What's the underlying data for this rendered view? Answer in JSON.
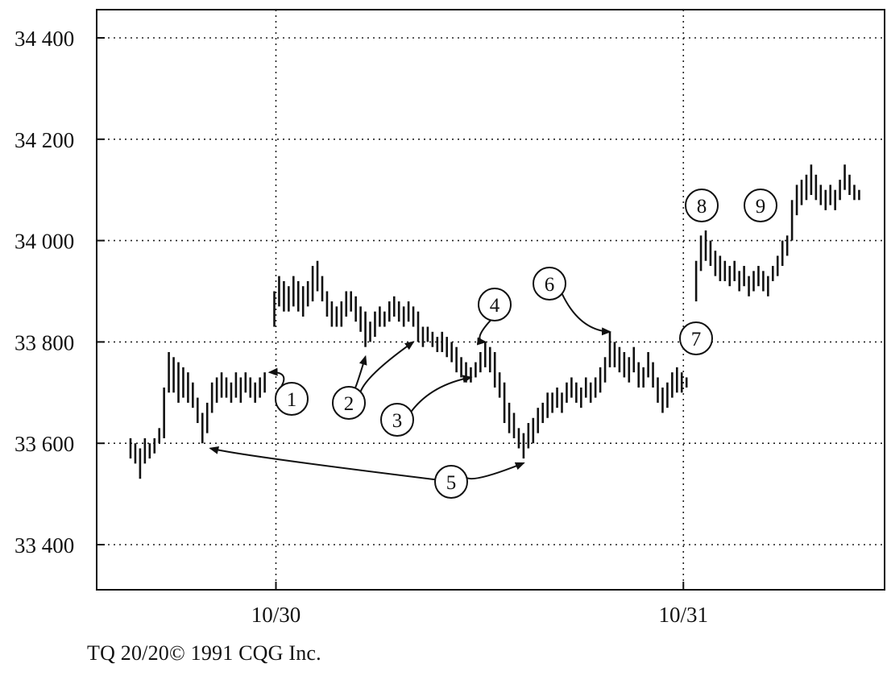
{
  "chart_data": {
    "type": "bar",
    "subtype": "ohlc-intraday-bars",
    "title": "",
    "xlabel": "",
    "ylabel": "",
    "ylim": [
      33300,
      34450
    ],
    "y_ticks": [
      {
        "value": 33400,
        "label": "33 400"
      },
      {
        "value": 33600,
        "label": "33 600"
      },
      {
        "value": 33800,
        "label": "33 800"
      },
      {
        "value": 34000,
        "label": "34 000"
      },
      {
        "value": 34200,
        "label": "34 200"
      },
      {
        "value": 34400,
        "label": "34 400"
      }
    ],
    "x_range": [
      0,
      153
    ],
    "x_ticks": [
      {
        "index": 30,
        "label": "10/30"
      },
      {
        "index": 115,
        "label": "10/31"
      }
    ],
    "grid": true,
    "bars": [
      {
        "i": 0,
        "high": 33610,
        "low": 33570
      },
      {
        "i": 1,
        "high": 33600,
        "low": 33560
      },
      {
        "i": 2,
        "high": 33590,
        "low": 33530
      },
      {
        "i": 3,
        "high": 33610,
        "low": 33560
      },
      {
        "i": 4,
        "high": 33600,
        "low": 33570
      },
      {
        "i": 5,
        "high": 33610,
        "low": 33580
      },
      {
        "i": 6,
        "high": 33630,
        "low": 33600
      },
      {
        "i": 7,
        "high": 33710,
        "low": 33610
      },
      {
        "i": 8,
        "high": 33780,
        "low": 33700
      },
      {
        "i": 9,
        "high": 33770,
        "low": 33700
      },
      {
        "i": 10,
        "high": 33760,
        "low": 33680
      },
      {
        "i": 11,
        "high": 33750,
        "low": 33690
      },
      {
        "i": 12,
        "high": 33740,
        "low": 33680
      },
      {
        "i": 13,
        "high": 33720,
        "low": 33670
      },
      {
        "i": 14,
        "high": 33690,
        "low": 33640
      },
      {
        "i": 15,
        "high": 33660,
        "low": 33600
      },
      {
        "i": 16,
        "high": 33680,
        "low": 33620
      },
      {
        "i": 17,
        "high": 33720,
        "low": 33660
      },
      {
        "i": 18,
        "high": 33730,
        "low": 33680
      },
      {
        "i": 19,
        "high": 33740,
        "low": 33690
      },
      {
        "i": 20,
        "high": 33730,
        "low": 33690
      },
      {
        "i": 21,
        "high": 33720,
        "low": 33680
      },
      {
        "i": 22,
        "high": 33740,
        "low": 33690
      },
      {
        "i": 23,
        "high": 33730,
        "low": 33680
      },
      {
        "i": 24,
        "high": 33740,
        "low": 33700
      },
      {
        "i": 25,
        "high": 33730,
        "low": 33690
      },
      {
        "i": 26,
        "high": 33720,
        "low": 33680
      },
      {
        "i": 27,
        "high": 33730,
        "low": 33690
      },
      {
        "i": 28,
        "high": 33740,
        "low": 33700
      },
      {
        "i": 30,
        "high": 33900,
        "low": 33830
      },
      {
        "i": 31,
        "high": 33930,
        "low": 33870
      },
      {
        "i": 32,
        "high": 33920,
        "low": 33860
      },
      {
        "i": 33,
        "high": 33910,
        "low": 33860
      },
      {
        "i": 34,
        "high": 33930,
        "low": 33870
      },
      {
        "i": 35,
        "high": 33920,
        "low": 33860
      },
      {
        "i": 36,
        "high": 33910,
        "low": 33850
      },
      {
        "i": 37,
        "high": 33920,
        "low": 33870
      },
      {
        "i": 38,
        "high": 33950,
        "low": 33880
      },
      {
        "i": 39,
        "high": 33960,
        "low": 33900
      },
      {
        "i": 40,
        "high": 33930,
        "low": 33880
      },
      {
        "i": 41,
        "high": 33900,
        "low": 33850
      },
      {
        "i": 42,
        "high": 33880,
        "low": 33830
      },
      {
        "i": 43,
        "high": 33870,
        "low": 33830
      },
      {
        "i": 44,
        "high": 33880,
        "low": 33830
      },
      {
        "i": 45,
        "high": 33900,
        "low": 33850
      },
      {
        "i": 46,
        "high": 33900,
        "low": 33860
      },
      {
        "i": 47,
        "high": 33890,
        "low": 33840
      },
      {
        "i": 48,
        "high": 33870,
        "low": 33820
      },
      {
        "i": 49,
        "high": 33860,
        "low": 33790
      },
      {
        "i": 50,
        "high": 33840,
        "low": 33800
      },
      {
        "i": 51,
        "high": 33860,
        "low": 33810
      },
      {
        "i": 52,
        "high": 33870,
        "low": 33830
      },
      {
        "i": 53,
        "high": 33860,
        "low": 33830
      },
      {
        "i": 54,
        "high": 33880,
        "low": 33840
      },
      {
        "i": 55,
        "high": 33890,
        "low": 33850
      },
      {
        "i": 56,
        "high": 33880,
        "low": 33840
      },
      {
        "i": 57,
        "high": 33870,
        "low": 33830
      },
      {
        "i": 58,
        "high": 33880,
        "low": 33840
      },
      {
        "i": 59,
        "high": 33870,
        "low": 33830
      },
      {
        "i": 60,
        "high": 33860,
        "low": 33800
      },
      {
        "i": 61,
        "high": 33830,
        "low": 33790
      },
      {
        "i": 62,
        "high": 33830,
        "low": 33800
      },
      {
        "i": 63,
        "high": 33820,
        "low": 33790
      },
      {
        "i": 64,
        "high": 33810,
        "low": 33780
      },
      {
        "i": 65,
        "high": 33820,
        "low": 33780
      },
      {
        "i": 66,
        "high": 33810,
        "low": 33770
      },
      {
        "i": 67,
        "high": 33800,
        "low": 33760
      },
      {
        "i": 68,
        "high": 33790,
        "low": 33740
      },
      {
        "i": 69,
        "high": 33770,
        "low": 33730
      },
      {
        "i": 70,
        "high": 33760,
        "low": 33720
      },
      {
        "i": 71,
        "high": 33750,
        "low": 33720
      },
      {
        "i": 72,
        "high": 33760,
        "low": 33730
      },
      {
        "i": 73,
        "high": 33780,
        "low": 33740
      },
      {
        "i": 74,
        "high": 33800,
        "low": 33750
      },
      {
        "i": 75,
        "high": 33790,
        "low": 33740
      },
      {
        "i": 76,
        "high": 33780,
        "low": 33710
      },
      {
        "i": 77,
        "high": 33740,
        "low": 33690
      },
      {
        "i": 78,
        "high": 33720,
        "low": 33640
      },
      {
        "i": 79,
        "high": 33680,
        "low": 33620
      },
      {
        "i": 80,
        "high": 33660,
        "low": 33610
      },
      {
        "i": 81,
        "high": 33630,
        "low": 33590
      },
      {
        "i": 82,
        "high": 33620,
        "low": 33570
      },
      {
        "i": 83,
        "high": 33640,
        "low": 33590
      },
      {
        "i": 84,
        "high": 33650,
        "low": 33600
      },
      {
        "i": 85,
        "high": 33670,
        "low": 33620
      },
      {
        "i": 86,
        "high": 33680,
        "low": 33640
      },
      {
        "i": 87,
        "high": 33700,
        "low": 33650
      },
      {
        "i": 88,
        "high": 33700,
        "low": 33660
      },
      {
        "i": 89,
        "high": 33710,
        "low": 33670
      },
      {
        "i": 90,
        "high": 33700,
        "low": 33660
      },
      {
        "i": 91,
        "high": 33720,
        "low": 33680
      },
      {
        "i": 92,
        "high": 33730,
        "low": 33690
      },
      {
        "i": 93,
        "high": 33720,
        "low": 33680
      },
      {
        "i": 94,
        "high": 33710,
        "low": 33670
      },
      {
        "i": 95,
        "high": 33730,
        "low": 33690
      },
      {
        "i": 96,
        "high": 33720,
        "low": 33680
      },
      {
        "i": 97,
        "high": 33730,
        "low": 33690
      },
      {
        "i": 98,
        "high": 33750,
        "low": 33700
      },
      {
        "i": 99,
        "high": 33770,
        "low": 33720
      },
      {
        "i": 100,
        "high": 33820,
        "low": 33750
      },
      {
        "i": 101,
        "high": 33800,
        "low": 33750
      },
      {
        "i": 102,
        "high": 33790,
        "low": 33740
      },
      {
        "i": 103,
        "high": 33780,
        "low": 33730
      },
      {
        "i": 104,
        "high": 33770,
        "low": 33720
      },
      {
        "i": 105,
        "high": 33790,
        "low": 33740
      },
      {
        "i": 106,
        "high": 33760,
        "low": 33710
      },
      {
        "i": 107,
        "high": 33750,
        "low": 33710
      },
      {
        "i": 108,
        "high": 33780,
        "low": 33730
      },
      {
        "i": 109,
        "high": 33760,
        "low": 33710
      },
      {
        "i": 110,
        "high": 33730,
        "low": 33680
      },
      {
        "i": 111,
        "high": 33710,
        "low": 33660
      },
      {
        "i": 112,
        "high": 33720,
        "low": 33670
      },
      {
        "i": 113,
        "high": 33740,
        "low": 33690
      },
      {
        "i": 114,
        "high": 33750,
        "low": 33700
      },
      {
        "i": 115,
        "high": 33740,
        "low": 33700
      },
      {
        "i": 116,
        "high": 33730,
        "low": 33710
      },
      {
        "i": 118,
        "high": 33960,
        "low": 33880
      },
      {
        "i": 119,
        "high": 34010,
        "low": 33940
      },
      {
        "i": 120,
        "high": 34020,
        "low": 33960
      },
      {
        "i": 121,
        "high": 34000,
        "low": 33950
      },
      {
        "i": 122,
        "high": 33980,
        "low": 33930
      },
      {
        "i": 123,
        "high": 33970,
        "low": 33920
      },
      {
        "i": 124,
        "high": 33960,
        "low": 33920
      },
      {
        "i": 125,
        "high": 33950,
        "low": 33910
      },
      {
        "i": 126,
        "high": 33960,
        "low": 33920
      },
      {
        "i": 127,
        "high": 33940,
        "low": 33900
      },
      {
        "i": 128,
        "high": 33950,
        "low": 33910
      },
      {
        "i": 129,
        "high": 33930,
        "low": 33890
      },
      {
        "i": 130,
        "high": 33940,
        "low": 33900
      },
      {
        "i": 131,
        "high": 33950,
        "low": 33910
      },
      {
        "i": 132,
        "high": 33940,
        "low": 33900
      },
      {
        "i": 133,
        "high": 33930,
        "low": 33890
      },
      {
        "i": 134,
        "high": 33950,
        "low": 33920
      },
      {
        "i": 135,
        "high": 33970,
        "low": 33930
      },
      {
        "i": 136,
        "high": 34000,
        "low": 33950
      },
      {
        "i": 137,
        "high": 34010,
        "low": 33970
      },
      {
        "i": 138,
        "high": 34080,
        "low": 34000
      },
      {
        "i": 139,
        "high": 34110,
        "low": 34050
      },
      {
        "i": 140,
        "high": 34120,
        "low": 34070
      },
      {
        "i": 141,
        "high": 34130,
        "low": 34080
      },
      {
        "i": 142,
        "high": 34150,
        "low": 34090
      },
      {
        "i": 143,
        "high": 34130,
        "low": 34080
      },
      {
        "i": 144,
        "high": 34110,
        "low": 34070
      },
      {
        "i": 145,
        "high": 34100,
        "low": 34060
      },
      {
        "i": 146,
        "high": 34110,
        "low": 34070
      },
      {
        "i": 147,
        "high": 34100,
        "low": 34060
      },
      {
        "i": 148,
        "high": 34120,
        "low": 34080
      },
      {
        "i": 149,
        "high": 34150,
        "low": 34100
      },
      {
        "i": 150,
        "high": 34130,
        "low": 34090
      },
      {
        "i": 151,
        "high": 34110,
        "low": 34080
      },
      {
        "i": 152,
        "high": 34100,
        "low": 34080
      }
    ],
    "annotations": [
      {
        "label": "1",
        "arrows": [
          {
            "to_index": 29,
            "to_price": 33740
          }
        ]
      },
      {
        "label": "2",
        "arrows": [
          {
            "to_index": 49,
            "to_price": 33790
          },
          {
            "to_index": 59,
            "to_price": 33800
          }
        ]
      },
      {
        "label": "3",
        "arrows": [
          {
            "to_index": 71,
            "to_price": 33730
          }
        ]
      },
      {
        "label": "4",
        "arrows": [
          {
            "to_index": 74,
            "to_price": 33800
          }
        ]
      },
      {
        "label": "5",
        "arrows": [
          {
            "to_index": 16,
            "to_price": 33590
          },
          {
            "to_index": 82,
            "to_price": 33580
          }
        ]
      },
      {
        "label": "6",
        "arrows": [
          {
            "to_index": 100,
            "to_price": 33820
          }
        ]
      },
      {
        "label": "7",
        "arrows": []
      },
      {
        "label": "8",
        "arrows": []
      },
      {
        "label": "9",
        "arrows": []
      }
    ]
  },
  "credit": "TQ 20/20© 1991 CQG Inc."
}
